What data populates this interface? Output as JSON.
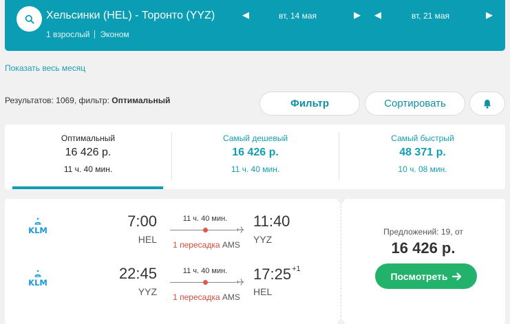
{
  "header": {
    "route": "Хельсинки (HEL) - Торонто (YYZ)",
    "passengers": "1 взрослый",
    "cabin": "Эконом",
    "depart_date": "вт, 14 мая",
    "return_date": "вт, 21 мая",
    "accent_color": "#0a9db4"
  },
  "show_month_link": "Показать весь месяц",
  "results": {
    "prefix": "Результатов: 1069, фильтр:",
    "filter_name": "Оптимальный"
  },
  "toolbar": {
    "filter_label": "Фильтр",
    "sort_label": "Сортировать",
    "bell_icon": "bell-icon"
  },
  "tabs": [
    {
      "title": "Оптимальный",
      "price": "16 426 р.",
      "duration": "11 ч. 40 мин.",
      "active": true
    },
    {
      "title": "Самый дешевый",
      "price": "16 426 р.",
      "duration": "11 ч. 40 мин.",
      "active": false
    },
    {
      "title": "Самый быстрый",
      "price": "48 371 р.",
      "duration": "10 ч. 08 мин.",
      "active": false
    }
  ],
  "result_card": {
    "legs": [
      {
        "airline": "KLM",
        "dep_time": "7:00",
        "dep_code": "HEL",
        "duration": "11 ч. 40 мин.",
        "stops": "1 пересадка",
        "via": "AMS",
        "arr_time": "11:40",
        "arr_code": "YYZ",
        "day_offset": ""
      },
      {
        "airline": "KLM",
        "dep_time": "22:45",
        "dep_code": "YYZ",
        "duration": "11 ч. 40 мин.",
        "stops": "1 пересадка",
        "via": "AMS",
        "arr_time": "17:25",
        "arr_code": "HEL",
        "day_offset": "+1"
      }
    ],
    "offers_label": "Предложений: 19, от",
    "price": "16 426 р.",
    "view_button": "Посмотреть",
    "button_color": "#22b26c"
  }
}
